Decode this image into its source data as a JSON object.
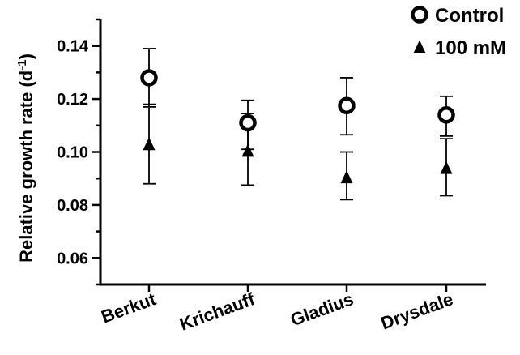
{
  "chart_data": {
    "type": "scatter",
    "title": "",
    "xlabel": "",
    "ylabel": "Relative growth rate (d",
    "ylabel_sup": "-1",
    "ylabel_close": ")",
    "categories": [
      "Berkut",
      "Krichauff",
      "Gladius",
      "Drysdale"
    ],
    "ylim": [
      0.05,
      0.15
    ],
    "yticks": [
      0.06,
      0.08,
      0.1,
      0.12,
      0.14
    ],
    "ytick_labels": [
      "0.06",
      "0.08",
      "0.10",
      "0.12",
      "0.14"
    ],
    "legend_position": "top-right",
    "series": [
      {
        "name": "Control",
        "marker": "open-circle",
        "values": [
          0.128,
          0.111,
          0.1175,
          0.114
        ],
        "err_low": [
          0.117,
          0.101,
          0.1065,
          0.106
        ],
        "err_high": [
          0.139,
          0.1195,
          0.128,
          0.121
        ]
      },
      {
        "name": "100 mM",
        "marker": "filled-triangle",
        "values": [
          0.103,
          0.1005,
          0.0905,
          0.094
        ],
        "err_low": [
          0.088,
          0.0875,
          0.082,
          0.0835
        ],
        "err_high": [
          0.118,
          0.1145,
          0.1,
          0.105
        ]
      }
    ]
  }
}
